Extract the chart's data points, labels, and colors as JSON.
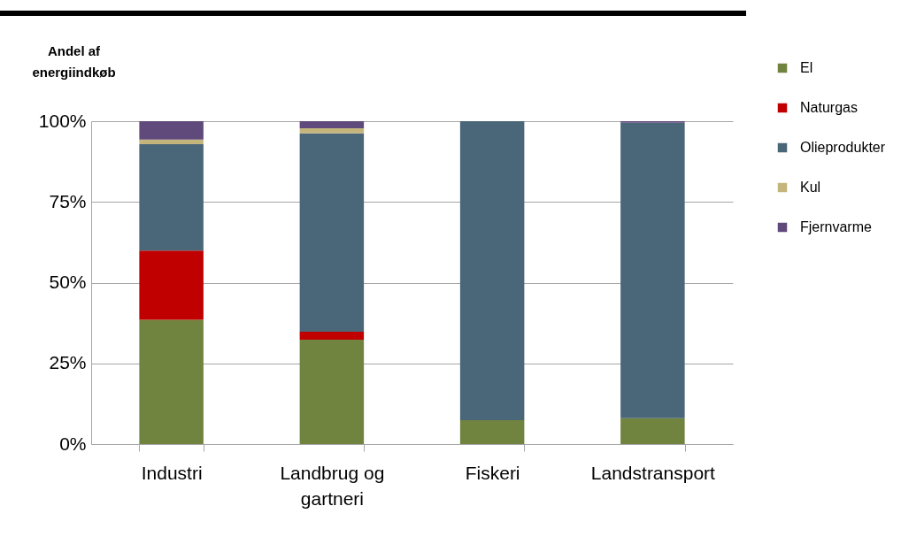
{
  "chart_data": {
    "type": "bar",
    "stacked": true,
    "ylabel": "Andel af energiindkøb",
    "categories": [
      "Industri",
      "Landbrug og gartneri",
      "Fiskeri",
      "Landstransport"
    ],
    "series": [
      {
        "name": "El",
        "color": "#71843f",
        "values": [
          38.5,
          32.3,
          7.4,
          8.0
        ]
      },
      {
        "name": "Naturgas",
        "color": "#c00000",
        "values": [
          21.4,
          2.5,
          0,
          0
        ]
      },
      {
        "name": "Olieprodukter",
        "color": "#4a6679",
        "values": [
          33.0,
          61.4,
          92.6,
          91.5
        ]
      },
      {
        "name": "Kul",
        "color": "#c4b57c",
        "values": [
          1.4,
          1.6,
          0,
          0
        ]
      },
      {
        "name": "Fjernvarme",
        "color": "#604a7b",
        "values": [
          5.7,
          2.2,
          0,
          0.5
        ]
      }
    ],
    "ylim": [
      0,
      100
    ],
    "yticks": [
      {
        "value": 0,
        "label": "0%"
      },
      {
        "value": 25,
        "label": "25%"
      },
      {
        "value": 50,
        "label": "50%"
      },
      {
        "value": 75,
        "label": "75%"
      },
      {
        "value": 100,
        "label": "100%"
      }
    ],
    "grid": "y",
    "legend": "right"
  }
}
